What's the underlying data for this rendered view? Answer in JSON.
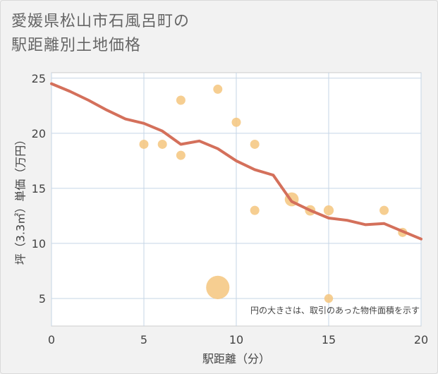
{
  "title_line1": "愛媛県松山市石風呂町の",
  "title_line2": "駅距離別土地価格",
  "chart_data": {
    "type": "scatter",
    "title": "愛媛県松山市石風呂町の駅距離別土地価格",
    "xlabel": "駅距離（分）",
    "ylabel": "坪（3.3㎡）単価（万円）",
    "xlim": [
      0,
      20
    ],
    "ylim": [
      2.5,
      25.5
    ],
    "xticks": [
      0,
      5,
      10,
      15,
      20
    ],
    "yticks": [
      5,
      10,
      15,
      20,
      25
    ],
    "grid": true,
    "note": "円の大きさは、取引のあった物件面積を示す",
    "colors": {
      "points": "#f5c57e",
      "line": "#d4705b"
    },
    "points": [
      {
        "x": 5,
        "y": 19,
        "size": 1
      },
      {
        "x": 6,
        "y": 19,
        "size": 1
      },
      {
        "x": 7,
        "y": 23,
        "size": 1
      },
      {
        "x": 7,
        "y": 18,
        "size": 1
      },
      {
        "x": 9,
        "y": 24,
        "size": 1
      },
      {
        "x": 9,
        "y": 6,
        "size": 6.5
      },
      {
        "x": 10,
        "y": 21,
        "size": 1
      },
      {
        "x": 11,
        "y": 19,
        "size": 1
      },
      {
        "x": 11,
        "y": 13,
        "size": 1
      },
      {
        "x": 13,
        "y": 14,
        "size": 2.3
      },
      {
        "x": 14,
        "y": 13,
        "size": 1.3
      },
      {
        "x": 15,
        "y": 13,
        "size": 1.2
      },
      {
        "x": 15,
        "y": 5,
        "size": 0.9
      },
      {
        "x": 18,
        "y": 13,
        "size": 1
      },
      {
        "x": 19,
        "y": 11,
        "size": 1
      }
    ],
    "trend": {
      "x": [
        0,
        1,
        2,
        3,
        4,
        5,
        6,
        7,
        8,
        9,
        10,
        11,
        12,
        13,
        14,
        15,
        16,
        17,
        18,
        19,
        20
      ],
      "y": [
        24.5,
        23.8,
        23.0,
        22.1,
        21.3,
        20.9,
        20.2,
        19.0,
        19.3,
        18.6,
        17.5,
        16.7,
        16.2,
        13.8,
        13.0,
        12.3,
        12.1,
        11.7,
        11.8,
        11.1,
        10.4
      ]
    }
  }
}
